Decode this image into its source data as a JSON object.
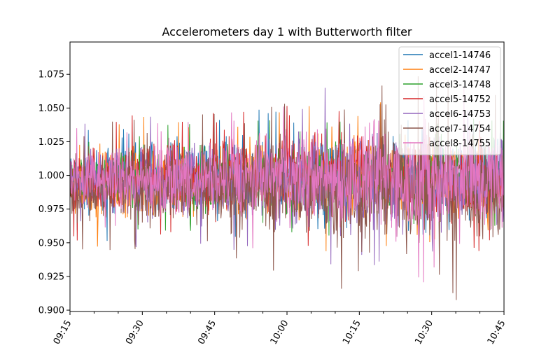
{
  "chart_data": {
    "type": "line",
    "title": "Accelerometers day 1 with Butterworth filter",
    "xlabel": "",
    "ylabel": "",
    "x_range": [
      "09:15",
      "10:45"
    ],
    "ylim": [
      0.899,
      1.099
    ],
    "x_ticks": [
      "09:15",
      "09:30",
      "09:45",
      "10:00",
      "10:15",
      "10:30",
      "10:45"
    ],
    "y_ticks": [
      "0.900",
      "0.925",
      "0.950",
      "0.975",
      "1.000",
      "1.025",
      "1.050",
      "1.075"
    ],
    "grid": false,
    "legend_position": "top-right",
    "series": [
      {
        "name": "accel1-14746",
        "color": "#1f77b4",
        "envelope": {
          "x": [
            "09:15",
            "09:30",
            "09:45",
            "10:00",
            "10:15",
            "10:30",
            "10:45"
          ],
          "low": [
            0.968,
            0.972,
            0.97,
            0.972,
            0.97,
            0.968,
            0.968
          ],
          "high": [
            1.022,
            1.026,
            1.03,
            1.028,
            1.03,
            1.028,
            1.026
          ]
        }
      },
      {
        "name": "accel2-14747",
        "color": "#ff7f0e",
        "envelope": {
          "x": [
            "09:15",
            "09:30",
            "09:45",
            "10:00",
            "10:15",
            "10:30",
            "10:45"
          ],
          "low": [
            0.968,
            0.965,
            0.966,
            0.966,
            0.964,
            0.964,
            0.964
          ],
          "high": [
            1.022,
            1.025,
            1.028,
            1.03,
            1.032,
            1.03,
            1.03
          ]
        }
      },
      {
        "name": "accel3-14748",
        "color": "#2ca02c",
        "envelope": {
          "x": [
            "09:15",
            "09:30",
            "09:45",
            "10:00",
            "10:15",
            "10:30",
            "10:45"
          ],
          "low": [
            0.972,
            0.974,
            0.972,
            0.972,
            0.97,
            0.97,
            0.97
          ],
          "high": [
            1.02,
            1.022,
            1.022,
            1.024,
            1.026,
            1.024,
            1.024
          ]
        }
      },
      {
        "name": "accel5-14752",
        "color": "#d62728",
        "envelope": {
          "x": [
            "09:15",
            "09:30",
            "09:45",
            "10:00",
            "10:15",
            "10:30",
            "10:45"
          ],
          "low": [
            0.97,
            0.966,
            0.968,
            0.968,
            0.966,
            0.966,
            0.966
          ],
          "high": [
            1.024,
            1.03,
            1.03,
            1.032,
            1.034,
            1.03,
            1.03
          ]
        }
      },
      {
        "name": "accel6-14753",
        "color": "#9467bd",
        "envelope": {
          "x": [
            "09:15",
            "09:30",
            "09:45",
            "10:00",
            "10:15",
            "10:30",
            "10:45"
          ],
          "low": [
            0.968,
            0.966,
            0.964,
            0.958,
            0.952,
            0.95,
            0.948
          ],
          "high": [
            1.024,
            1.026,
            1.028,
            1.034,
            1.04,
            1.04,
            1.04
          ]
        }
      },
      {
        "name": "accel7-14754",
        "color": "#8c564b",
        "envelope": {
          "x": [
            "09:15",
            "09:30",
            "09:45",
            "10:00",
            "10:15",
            "10:30",
            "10:45"
          ],
          "low": [
            0.962,
            0.962,
            0.96,
            0.95,
            0.94,
            0.94,
            0.94
          ],
          "high": [
            1.02,
            1.022,
            1.024,
            1.032,
            1.04,
            1.04,
            1.04
          ]
        }
      },
      {
        "name": "accel8-14755",
        "color": "#e377c2",
        "envelope": {
          "x": [
            "09:15",
            "09:30",
            "09:45",
            "10:00",
            "10:15",
            "10:30",
            "10:45"
          ],
          "low": [
            0.97,
            0.97,
            0.97,
            0.962,
            0.955,
            0.952,
            0.952
          ],
          "high": [
            1.022,
            1.024,
            1.026,
            1.036,
            1.044,
            1.044,
            1.042
          ]
        }
      }
    ]
  }
}
